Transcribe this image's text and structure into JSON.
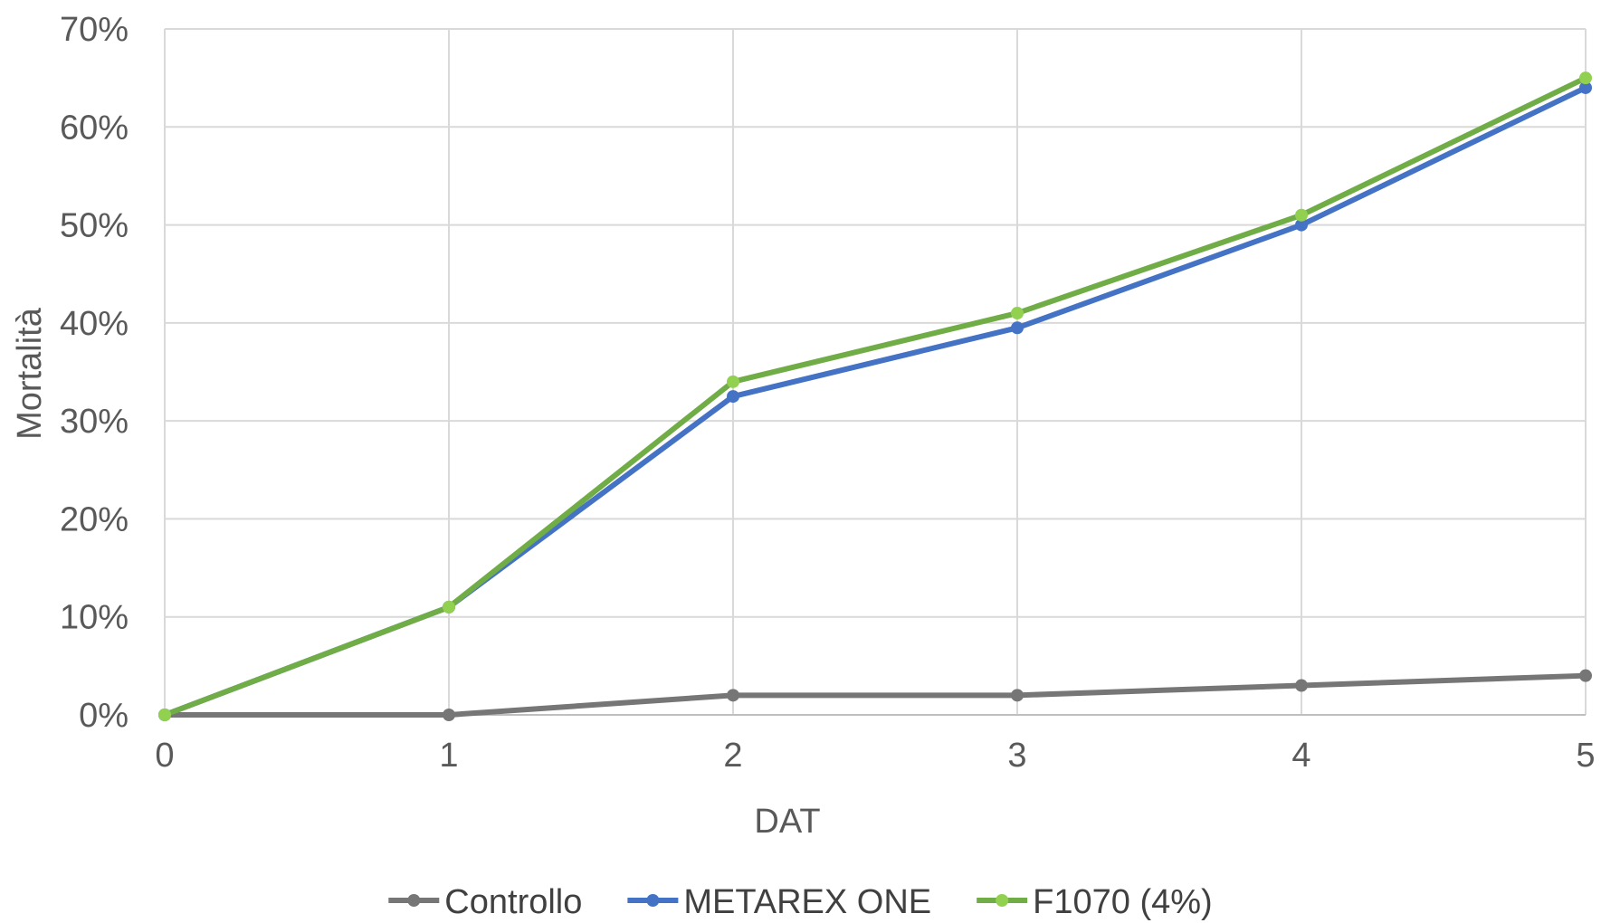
{
  "chart_data": {
    "type": "line",
    "title": "",
    "xlabel": "DAT",
    "ylabel": "Mortalità",
    "x": [
      0,
      1,
      2,
      3,
      4,
      5
    ],
    "x_tick_labels": [
      "0",
      "1",
      "2",
      "3",
      "4",
      "5"
    ],
    "ylim": [
      0,
      0.7
    ],
    "y_ticks": [
      0,
      0.1,
      0.2,
      0.3,
      0.4,
      0.5,
      0.6,
      0.7
    ],
    "y_tick_labels": [
      "0%",
      "10%",
      "20%",
      "30%",
      "40%",
      "50%",
      "60%",
      "70%"
    ],
    "grid": true,
    "legend_position": "bottom",
    "series": [
      {
        "name": "Controllo",
        "color": "#767676",
        "values": [
          0,
          0,
          0.02,
          0.02,
          0.03,
          0.04
        ]
      },
      {
        "name": "METAREX ONE",
        "color": "#4472C4",
        "values": [
          0,
          0.11,
          0.325,
          0.395,
          0.5,
          0.64
        ]
      },
      {
        "name": "F1070 (4%)",
        "color": "#70AD47",
        "marker_color": "#92D050",
        "values": [
          0,
          0.11,
          0.34,
          0.41,
          0.51,
          0.65
        ]
      }
    ]
  }
}
